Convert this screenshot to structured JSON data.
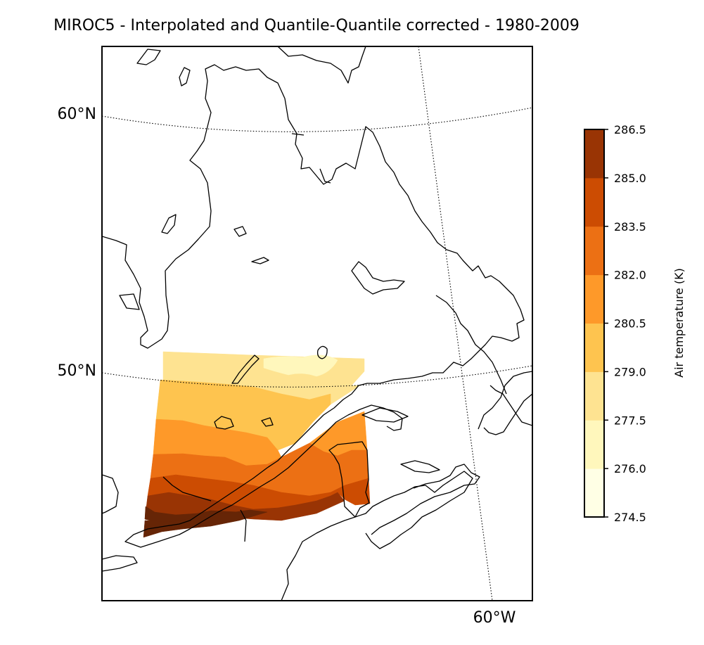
{
  "title": "MIROC5 - Interpolated and Quantile-Quantile corrected - 1980-2009",
  "lat_labels": [
    "60°N",
    "50°N"
  ],
  "lon_labels": [
    "60°W"
  ],
  "colorbar": {
    "label": "Air temperature (K)",
    "levels": [
      274.5,
      276.0,
      277.5,
      279.0,
      280.5,
      282.0,
      283.5,
      285.0,
      286.5
    ],
    "tick_labels": [
      "274.5",
      "276.0",
      "277.5",
      "279.0",
      "280.5",
      "282.0",
      "283.5",
      "285.0",
      "286.5"
    ],
    "colors": [
      "#ffffe5",
      "#fff7bc",
      "#fee391",
      "#fec44f",
      "#fe9929",
      "#ec7014",
      "#cc4c02",
      "#993404",
      "#662506"
    ]
  },
  "chart_data": {
    "type": "heatmap",
    "title": "MIROC5 - Interpolated and Quantile-Quantile corrected - 1980-2009",
    "variable": "Air temperature (K)",
    "vmin": 274.5,
    "vmax": 286.5,
    "levels": [
      274.5,
      276.0,
      277.5,
      279.0,
      280.5,
      282.0,
      283.5,
      285.0,
      286.5
    ],
    "latitude_gridlines": [
      "60°N",
      "50°N"
    ],
    "longitude_gridlines": [
      "60°W"
    ],
    "projection": "conic",
    "field_pattern": "temperature increases southward; warmest (285–286.5 K) along the southern St. Lawrence valley, coolest (276–279 K) near the northern edge of the domain"
  }
}
